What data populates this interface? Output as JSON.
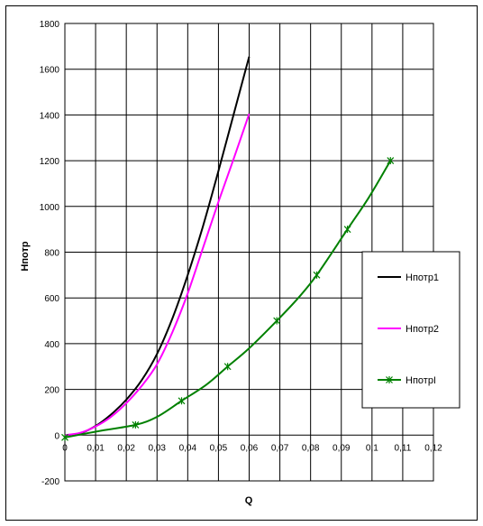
{
  "chart_data": {
    "type": "line",
    "title": "",
    "xlabel": "Q",
    "ylabel": "Нпотр",
    "xlim": [
      0,
      0.12
    ],
    "ylim": [
      -200,
      1800
    ],
    "xticks": [
      0,
      0.01,
      0.02,
      0.03,
      0.04,
      0.05,
      0.06,
      0.07,
      0.08,
      0.09,
      0.1,
      0.11,
      0.12
    ],
    "xtick_labels": [
      "0",
      "0,01",
      "0,02",
      "0,03",
      "0,04",
      "0,05",
      "0,06",
      "0,07",
      "0,08",
      "0,09",
      "0,1",
      "0,11",
      "0,12"
    ],
    "yticks": [
      -200,
      0,
      200,
      400,
      600,
      800,
      1000,
      1200,
      1400,
      1600,
      1800
    ],
    "ytick_labels": [
      "-200",
      "0",
      "200",
      "400",
      "600",
      "800",
      "1000",
      "1200",
      "1400",
      "1600",
      "1800"
    ],
    "grid": true,
    "legend_position": "right",
    "series": [
      {
        "name": "Нпотр1",
        "color": "#000000",
        "marker": "none",
        "x": [
          0,
          0.005,
          0.01,
          0.015,
          0.02,
          0.025,
          0.03,
          0.035,
          0.04,
          0.045,
          0.05,
          0.055,
          0.06
        ],
        "y": [
          0,
          8,
          40,
          90,
          155,
          240,
          355,
          510,
          700,
          915,
          1155,
          1405,
          1655
        ]
      },
      {
        "name": "Нпотр2",
        "color": "#ff00ff",
        "marker": "none",
        "x": [
          0,
          0.005,
          0.01,
          0.015,
          0.02,
          0.025,
          0.03,
          0.035,
          0.04,
          0.045,
          0.05,
          0.055,
          0.06
        ],
        "y": [
          0,
          10,
          38,
          80,
          140,
          215,
          310,
          450,
          620,
          820,
          1020,
          1210,
          1405
        ]
      },
      {
        "name": "НпотрI",
        "color": "#008000",
        "marker": "asterisk",
        "x": [
          0,
          0.012,
          0.023,
          0.03,
          0.038,
          0.046,
          0.053,
          0.06,
          0.069,
          0.076,
          0.082,
          0.092,
          0.099,
          0.106
        ],
        "y": [
          -10,
          20,
          45,
          80,
          150,
          220,
          300,
          380,
          500,
          600,
          700,
          900,
          1040,
          1200
        ],
        "marker_indices": [
          0,
          2,
          4,
          6,
          8,
          10,
          11,
          13
        ]
      }
    ]
  }
}
